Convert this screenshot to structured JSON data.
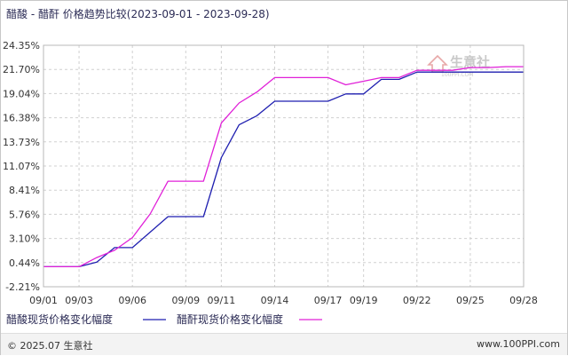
{
  "footer": {
    "left": "© 2025.07 生意社",
    "right": "www.100PPI.com"
  },
  "watermark": {
    "text": "生意社",
    "subtext": "100PPI.COM"
  },
  "colors": {
    "series_a": "#1f1fb0",
    "series_b": "#e020d8",
    "grid": "#d0d0d0",
    "watermark": "#c9c9c9",
    "watermark_logo": "#e8a8a8"
  },
  "chart_data": {
    "type": "line",
    "title": "醋酸 - 醋酐 价格趋势比较(2023-09-01 - 2023-09-28)",
    "xlabel": "",
    "ylabel": "",
    "x_start": "2023-09-01",
    "x_end": "2023-09-28",
    "x_ticks": [
      "09/01",
      "09/03",
      "09/06",
      "09/09",
      "09/11",
      "09/14",
      "09/17",
      "09/19",
      "09/22",
      "09/25",
      "09/28"
    ],
    "x_tick_dates": [
      "2023-09-01",
      "2023-09-03",
      "2023-09-06",
      "2023-09-09",
      "2023-09-11",
      "2023-09-14",
      "2023-09-17",
      "2023-09-19",
      "2023-09-22",
      "2023-09-25",
      "2023-09-28"
    ],
    "y_ticks": [
      "24.35%",
      "21.70%",
      "19.04%",
      "16.38%",
      "13.73%",
      "11.07%",
      "8.41%",
      "5.76%",
      "3.10%",
      "0.44%",
      "-2.21%"
    ],
    "ylim": [
      -2.21,
      24.35
    ],
    "grid": true,
    "legend_position": "bottom-left",
    "series": [
      {
        "name": "醋酸现货价格变化幅度",
        "color": "#1f1fb0",
        "points": [
          [
            "2023-09-01",
            0.0
          ],
          [
            "2023-09-03",
            0.0
          ],
          [
            "2023-09-04",
            0.5
          ],
          [
            "2023-09-05",
            2.1
          ],
          [
            "2023-09-06",
            2.1
          ],
          [
            "2023-09-08",
            5.5
          ],
          [
            "2023-09-10",
            5.5
          ],
          [
            "2023-09-11",
            12.0
          ],
          [
            "2023-09-12",
            15.6
          ],
          [
            "2023-09-13",
            16.6
          ],
          [
            "2023-09-14",
            18.2
          ],
          [
            "2023-09-17",
            18.2
          ],
          [
            "2023-09-18",
            19.0
          ],
          [
            "2023-09-19",
            19.0
          ],
          [
            "2023-09-20",
            20.6
          ],
          [
            "2023-09-21",
            20.6
          ],
          [
            "2023-09-22",
            21.4
          ],
          [
            "2023-09-28",
            21.4
          ]
        ]
      },
      {
        "name": "醋酐现货价格变化幅度",
        "color": "#e020d8",
        "points": [
          [
            "2023-09-01",
            0.0
          ],
          [
            "2023-09-03",
            0.0
          ],
          [
            "2023-09-04",
            1.0
          ],
          [
            "2023-09-05",
            1.8
          ],
          [
            "2023-09-06",
            3.2
          ],
          [
            "2023-09-07",
            5.8
          ],
          [
            "2023-09-08",
            9.4
          ],
          [
            "2023-09-10",
            9.4
          ],
          [
            "2023-09-11",
            15.8
          ],
          [
            "2023-09-12",
            18.0
          ],
          [
            "2023-09-13",
            19.2
          ],
          [
            "2023-09-14",
            20.8
          ],
          [
            "2023-09-17",
            20.8
          ],
          [
            "2023-09-18",
            20.0
          ],
          [
            "2023-09-19",
            20.4
          ],
          [
            "2023-09-20",
            20.8
          ],
          [
            "2023-09-21",
            20.8
          ],
          [
            "2023-09-22",
            21.6
          ],
          [
            "2023-09-24",
            21.6
          ],
          [
            "2023-09-25",
            21.9
          ],
          [
            "2023-09-26",
            21.9
          ],
          [
            "2023-09-27",
            22.0
          ],
          [
            "2023-09-28",
            22.0
          ]
        ]
      }
    ]
  }
}
